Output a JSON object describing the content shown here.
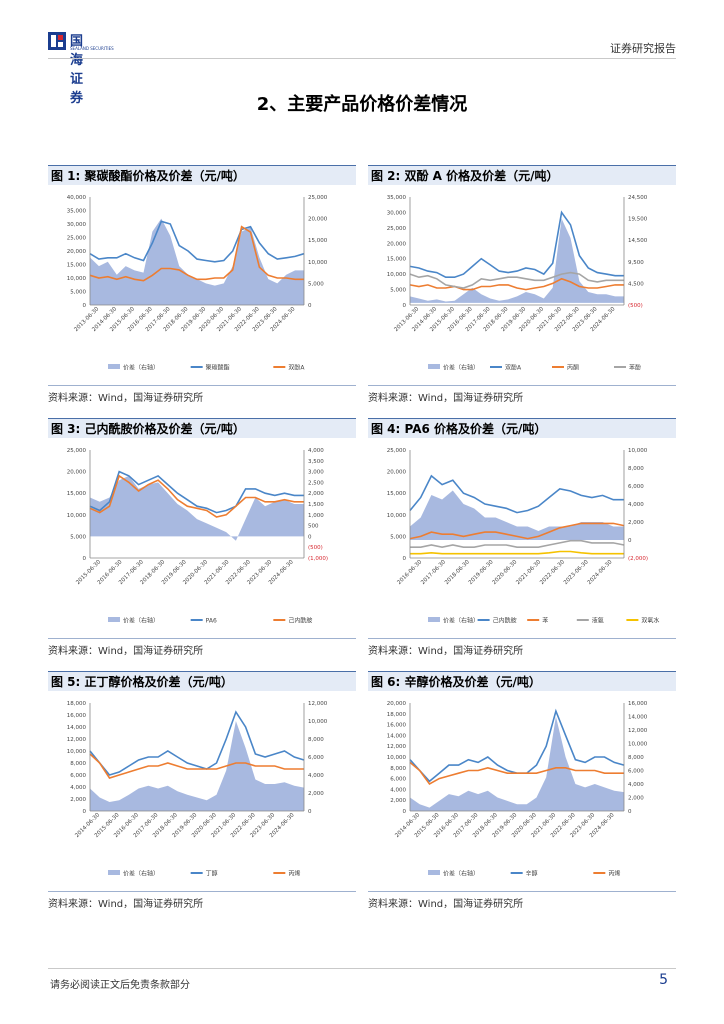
{
  "header": {
    "logo_cn": "国海证券",
    "logo_en": "SEALAND SECURITIES",
    "report_type": "证券研究报告"
  },
  "section_title": "2、主要产品价格价差情况",
  "footer": {
    "disclaimer": "请务必阅读正文后免责条款部分",
    "page": "5"
  },
  "colors": {
    "spread": "#a8b9e0",
    "blue": "#4a86c8",
    "orange": "#ed7d31",
    "gray": "#a5a5a5",
    "yellow": "#f5c200"
  },
  "figures": [
    {
      "label": "图 1: 聚碳酸酯价格及价差（元/吨）",
      "source": "资料来源：Wind，国海证券研究所",
      "chart_data": {
        "type": "area+line",
        "left_ticks": [
          "40,000",
          "35,000",
          "30,000",
          "25,000",
          "20,000",
          "15,000",
          "10,000",
          "5,000",
          "0"
        ],
        "left_range": [
          0,
          40000
        ],
        "right_ticks": [
          "25,000",
          "20,000",
          "15,000",
          "10,000",
          "5,000",
          "0"
        ],
        "right_range": [
          0,
          25000
        ],
        "x_labels": [
          "2013-06-30",
          "2014-06-30",
          "2015-06-30",
          "2016-06-30",
          "2017-06-30",
          "2018-06-30",
          "2019-06-30",
          "2020-06-30",
          "2021-06-30",
          "2022-06-30",
          "2023-06-30",
          "2024-06-30"
        ],
        "spread": {
          "name": "价差（右轴）",
          "axis": "right",
          "values": [
            11000,
            9000,
            10000,
            7000,
            9000,
            8000,
            7500,
            17000,
            20000,
            16000,
            9000,
            7000,
            6000,
            5000,
            4500,
            5000,
            9000,
            17000,
            18000,
            11000,
            6000,
            5000,
            7000,
            8000,
            8000
          ]
        },
        "lines": [
          {
            "name": "聚碳酸酯",
            "color": "blue",
            "axis": "left",
            "values": [
              19000,
              17000,
              17500,
              17500,
              19000,
              17500,
              16500,
              23000,
              31000,
              30000,
              22000,
              20000,
              17000,
              16500,
              16000,
              16500,
              20000,
              28000,
              29000,
              23000,
              19000,
              17000,
              17500,
              18000,
              19000
            ]
          },
          {
            "name": "双酚A",
            "color": "orange",
            "axis": "left",
            "values": [
              11000,
              10000,
              10500,
              9500,
              10500,
              9500,
              9000,
              11000,
              13500,
              13500,
              13000,
              11000,
              9500,
              9500,
              10000,
              10000,
              13000,
              29000,
              27000,
              14000,
              11000,
              10000,
              10000,
              9500,
              9500
            ]
          }
        ]
      }
    },
    {
      "label": "图 2: 双酚 A 价格及价差（元/吨）",
      "source": "资料来源：Wind，国海证券研究所",
      "chart_data": {
        "type": "area+line",
        "left_ticks": [
          "35,000",
          "30,000",
          "25,000",
          "20,000",
          "15,000",
          "10,000",
          "5,000",
          "0"
        ],
        "left_range": [
          0,
          35000
        ],
        "right_ticks": [
          "24,500",
          "19,500",
          "14,500",
          "9,500",
          "4,500",
          "(500)"
        ],
        "right_range": [
          -500,
          24500
        ],
        "x_labels": [
          "2013-06-30",
          "2014-06-30",
          "2015-06-30",
          "2016-06-30",
          "2017-06-30",
          "2018-06-30",
          "2019-06-30",
          "2020-06-30",
          "2021-06-30",
          "2022-06-30",
          "2023-06-30",
          "2024-06-30"
        ],
        "spread": {
          "name": "价差（右轴）",
          "axis": "right",
          "values": [
            1500,
            1000,
            500,
            800,
            300,
            500,
            2000,
            3500,
            2000,
            1000,
            500,
            800,
            1500,
            2500,
            2000,
            1000,
            3500,
            19500,
            15000,
            5000,
            2500,
            2000,
            2000,
            1500,
            1500
          ]
        },
        "lines": [
          {
            "name": "双酚A",
            "color": "blue",
            "axis": "left",
            "values": [
              12500,
              12000,
              11000,
              10500,
              9000,
              9000,
              10000,
              12500,
              15000,
              13000,
              11000,
              10500,
              11000,
              12000,
              11500,
              10000,
              13500,
              30000,
              26000,
              16000,
              12000,
              10500,
              10000,
              9500,
              9500
            ]
          },
          {
            "name": "丙酮",
            "color": "orange",
            "axis": "left",
            "values": [
              6500,
              6000,
              6500,
              5500,
              5500,
              6000,
              5000,
              5000,
              6000,
              6000,
              6500,
              6500,
              5500,
              5000,
              5500,
              6000,
              7000,
              8500,
              7500,
              6000,
              5500,
              5500,
              6000,
              6500,
              6500
            ]
          },
          {
            "name": "苯酚",
            "color": "gray",
            "axis": "left",
            "values": [
              10000,
              9000,
              9500,
              8500,
              6500,
              6000,
              5500,
              6500,
              8500,
              8000,
              8500,
              9000,
              9000,
              8500,
              8000,
              8000,
              9000,
              10000,
              10500,
              10000,
              8000,
              7500,
              8000,
              8000,
              8000
            ]
          }
        ]
      }
    },
    {
      "label": "图 3: 己内酰胺价格及价差（元/吨）",
      "source": "资料来源：Wind，国海证券研究所",
      "chart_data": {
        "type": "area+line",
        "left_ticks": [
          "25,000",
          "20,000",
          "15,000",
          "10,000",
          "5,000",
          "0"
        ],
        "left_range": [
          0,
          25000
        ],
        "right_ticks": [
          "4,000",
          "3,500",
          "3,000",
          "2,500",
          "2,000",
          "1,500",
          "1,000",
          "500",
          "0",
          "(500)",
          "(1,000)"
        ],
        "right_range": [
          -1000,
          4000
        ],
        "x_labels": [
          "2015-06-30",
          "2016-06-30",
          "2017-06-30",
          "2018-06-30",
          "2019-06-30",
          "2020-06-30",
          "2021-06-30",
          "2022-06-30",
          "2023-06-30",
          "2024-06-30"
        ],
        "spread": {
          "name": "价差（右轴）",
          "axis": "right",
          "values": [
            1800,
            1600,
            1800,
            2600,
            2800,
            2200,
            2400,
            2500,
            2000,
            1500,
            1200,
            800,
            600,
            400,
            200,
            -200,
            800,
            1800,
            1400,
            1600,
            1700,
            1500,
            1500
          ]
        },
        "lines": [
          {
            "name": "PA6",
            "color": "blue",
            "axis": "left",
            "values": [
              12000,
              11000,
              13000,
              20000,
              19000,
              17000,
              18000,
              19000,
              17000,
              15000,
              13500,
              12000,
              11500,
              10500,
              11000,
              12000,
              16000,
              16000,
              15000,
              14500,
              15000,
              14500,
              14500
            ]
          },
          {
            "name": "己内酰胺",
            "color": "orange",
            "axis": "left",
            "values": [
              11500,
              10500,
              12000,
              19000,
              17500,
              15500,
              17000,
              18000,
              16000,
              13500,
              12000,
              11500,
              11000,
              9500,
              10000,
              12000,
              14000,
              14000,
              13000,
              13000,
              13500,
              13000,
              13000
            ]
          }
        ]
      }
    },
    {
      "label": "图 4: PA6 价格及价差（元/吨）",
      "source": "资料来源：Wind，国海证券研究所",
      "chart_data": {
        "type": "area+line",
        "left_ticks": [
          "25,000",
          "20,000",
          "15,000",
          "10,000",
          "5,000",
          "0"
        ],
        "left_range": [
          0,
          25000
        ],
        "right_ticks": [
          "10,000",
          "8,000",
          "6,000",
          "4,000",
          "2,000",
          "0",
          "(2,000)"
        ],
        "right_range": [
          -2000,
          10000
        ],
        "x_labels": [
          "2016-06-30",
          "2017-06-30",
          "2018-06-30",
          "2019-06-30",
          "2020-06-30",
          "2021-06-30",
          "2022-06-30",
          "2023-06-30",
          "2024-06-30"
        ],
        "spread": {
          "name": "价差（右轴）",
          "axis": "right",
          "values": [
            1500,
            2500,
            5000,
            4500,
            5500,
            4000,
            3500,
            2500,
            2500,
            2000,
            1500,
            1500,
            1000,
            1500,
            1500,
            1500,
            2000,
            2000,
            2000,
            1500,
            1500
          ]
        },
        "lines": [
          {
            "name": "己内酰胺",
            "color": "blue",
            "axis": "left",
            "values": [
              11000,
              14000,
              19000,
              17000,
              18000,
              15000,
              14000,
              12500,
              12000,
              11500,
              10500,
              11000,
              12000,
              14000,
              16000,
              15500,
              14500,
              14000,
              14500,
              13500,
              13500
            ]
          },
          {
            "name": "苯",
            "color": "orange",
            "axis": "left",
            "values": [
              4500,
              5000,
              6000,
              5500,
              5500,
              5000,
              5500,
              6000,
              6000,
              5500,
              5000,
              4500,
              5000,
              6000,
              7000,
              7500,
              8000,
              8000,
              8000,
              8000,
              7500
            ]
          },
          {
            "name": "液氨",
            "color": "gray",
            "axis": "left",
            "values": [
              2500,
              2500,
              3000,
              2500,
              3000,
              2500,
              2500,
              3000,
              3000,
              3000,
              2500,
              2500,
              2500,
              3000,
              3500,
              4000,
              4000,
              3500,
              3500,
              3500,
              3000
            ]
          },
          {
            "name": "双氧水",
            "color": "yellow",
            "axis": "left",
            "values": [
              1000,
              1000,
              1200,
              1000,
              1000,
              1000,
              1000,
              1000,
              1000,
              1000,
              1000,
              1000,
              1000,
              1200,
              1500,
              1500,
              1200,
              1000,
              1000,
              1000,
              1000
            ]
          }
        ]
      }
    },
    {
      "label": "图 5: 正丁醇价格及价差（元/吨）",
      "source": "资料来源：Wind，国海证券研究所",
      "chart_data": {
        "type": "area+line",
        "left_ticks": [
          "18,000",
          "16,000",
          "14,000",
          "12,000",
          "10,000",
          "8,000",
          "6,000",
          "4,000",
          "2,000",
          "0"
        ],
        "left_range": [
          0,
          18000
        ],
        "right_ticks": [
          "12,000",
          "10,000",
          "8,000",
          "6,000",
          "4,000",
          "2,000",
          "0"
        ],
        "right_range": [
          0,
          12000
        ],
        "x_labels": [
          "2014-06-30",
          "2015-06-30",
          "2016-06-30",
          "2017-06-30",
          "2018-06-30",
          "2019-06-30",
          "2020-06-30",
          "2021-06-30",
          "2022-06-30",
          "2023-06-30",
          "2024-06-30"
        ],
        "spread": {
          "name": "价差（右轴）",
          "axis": "right",
          "values": [
            2500,
            1500,
            1000,
            1200,
            1800,
            2500,
            2800,
            2500,
            2800,
            2200,
            1800,
            1500,
            1200,
            1800,
            4500,
            10000,
            7000,
            3500,
            3000,
            3000,
            3200,
            2800,
            2600
          ]
        },
        "lines": [
          {
            "name": "丁醇",
            "color": "blue",
            "axis": "left",
            "values": [
              10000,
              8000,
              6000,
              6500,
              7500,
              8500,
              9000,
              9000,
              10000,
              9000,
              8000,
              7500,
              7000,
              8000,
              12000,
              16500,
              14000,
              9500,
              9000,
              9500,
              10000,
              9000,
              8500
            ]
          },
          {
            "name": "丙烯",
            "color": "orange",
            "axis": "left",
            "values": [
              9500,
              8000,
              5500,
              6000,
              6500,
              7000,
              7500,
              7500,
              8000,
              7500,
              7000,
              7000,
              7000,
              7000,
              7500,
              8000,
              8000,
              7500,
              7500,
              7500,
              7000,
              7000,
              7000
            ]
          }
        ]
      }
    },
    {
      "label": "图 6: 辛醇价格及价差（元/吨）",
      "source": "资料来源：Wind，国海证券研究所",
      "chart_data": {
        "type": "area+line",
        "left_ticks": [
          "20,000",
          "18,000",
          "16,000",
          "14,000",
          "12,000",
          "10,000",
          "8,000",
          "6,000",
          "4,000",
          "2,000",
          "0"
        ],
        "left_range": [
          0,
          20000
        ],
        "right_ticks": [
          "16,000",
          "14,000",
          "12,000",
          "10,000",
          "8,000",
          "6,000",
          "4,000",
          "2,000",
          "0"
        ],
        "right_range": [
          0,
          16000
        ],
        "x_labels": [
          "2014-06-30",
          "2015-06-30",
          "2016-06-30",
          "2017-06-30",
          "2018-06-30",
          "2019-06-30",
          "2020-06-30",
          "2021-06-30",
          "2022-06-30",
          "2023-06-30",
          "2024-06-30"
        ],
        "spread": {
          "name": "价差（右轴）",
          "axis": "right",
          "values": [
            2000,
            1000,
            500,
            1500,
            2500,
            2200,
            3000,
            2500,
            3000,
            2000,
            1500,
            1000,
            1000,
            2000,
            5000,
            14000,
            8000,
            4000,
            3500,
            4000,
            3500,
            3000,
            2800
          ]
        },
        "lines": [
          {
            "name": "辛醇",
            "color": "blue",
            "axis": "left",
            "values": [
              9500,
              7500,
              5500,
              7000,
              8500,
              8500,
              9500,
              9000,
              10000,
              8500,
              7500,
              7000,
              7000,
              8500,
              12000,
              18500,
              14000,
              9500,
              9000,
              10000,
              10000,
              9000,
              8500
            ]
          },
          {
            "name": "丙烯",
            "color": "orange",
            "axis": "left",
            "values": [
              9000,
              7500,
              5000,
              6000,
              6500,
              7000,
              7500,
              7500,
              8000,
              7500,
              7000,
              7000,
              7000,
              7000,
              7500,
              8000,
              8000,
              7500,
              7500,
              7500,
              7000,
              7000,
              7000
            ]
          }
        ]
      }
    }
  ]
}
